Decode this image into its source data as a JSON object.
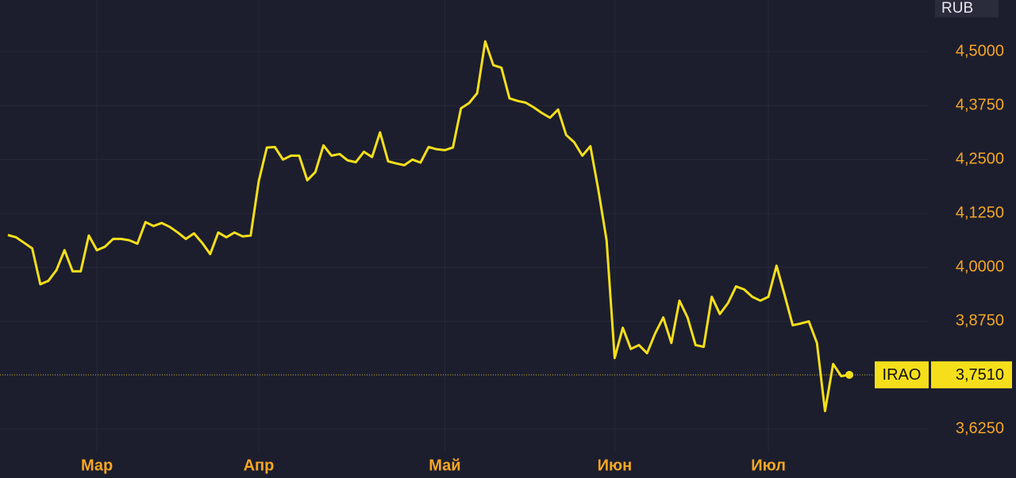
{
  "chart_data": {
    "type": "line",
    "unit": "RUB",
    "categories": [
      null,
      null,
      null,
      null,
      null,
      null,
      null,
      null,
      null,
      null,
      null,
      "Мар",
      null,
      null,
      null,
      null,
      null,
      null,
      null,
      null,
      null,
      null,
      null,
      null,
      null,
      null,
      null,
      null,
      null,
      null,
      null,
      "Апр",
      null,
      null,
      null,
      null,
      null,
      null,
      null,
      null,
      null,
      null,
      null,
      null,
      null,
      null,
      null,
      null,
      null,
      null,
      null,
      null,
      null,
      null,
      "Май",
      null,
      null,
      null,
      null,
      null,
      null,
      null,
      null,
      null,
      null,
      null,
      null,
      null,
      null,
      null,
      null,
      null,
      null,
      null,
      null,
      "Июн",
      null,
      null,
      null,
      null,
      null,
      null,
      null,
      null,
      null,
      null,
      null,
      null,
      null,
      null,
      null,
      null,
      null,
      null,
      "Июл",
      null,
      null,
      null,
      null,
      null,
      null,
      null,
      null,
      null,
      null
    ],
    "series": [
      {
        "name": "IRAO",
        "color": "#f5df1a",
        "values": [
          4.075,
          4.07,
          4.057,
          4.044,
          3.961,
          3.969,
          3.994,
          4.04,
          3.991,
          3.991,
          4.074,
          4.04,
          4.048,
          4.066,
          4.066,
          4.063,
          4.055,
          4.105,
          4.096,
          4.103,
          4.094,
          4.081,
          4.066,
          4.079,
          4.057,
          4.031,
          4.081,
          4.07,
          4.081,
          4.072,
          4.074,
          4.2,
          4.278,
          4.279,
          4.25,
          4.259,
          4.259,
          4.202,
          4.221,
          4.283,
          4.259,
          4.263,
          4.248,
          4.244,
          4.268,
          4.256,
          4.313,
          4.246,
          4.241,
          4.237,
          4.25,
          4.243,
          4.279,
          4.274,
          4.272,
          4.278,
          4.369,
          4.381,
          4.404,
          4.524,
          4.469,
          4.463,
          4.392,
          4.386,
          4.382,
          4.371,
          4.358,
          4.347,
          4.366,
          4.307,
          4.29,
          4.259,
          4.281,
          4.178,
          4.063,
          3.79,
          3.86,
          3.811,
          3.82,
          3.801,
          3.847,
          3.884,
          3.825,
          3.923,
          3.884,
          3.82,
          3.816,
          3.932,
          3.892,
          3.917,
          3.956,
          3.949,
          3.932,
          3.923,
          3.932,
          4.004,
          3.936,
          3.866,
          3.87,
          3.875,
          3.825,
          3.667,
          3.776,
          3.748,
          3.751
        ]
      }
    ],
    "current_price": {
      "value": 3.751,
      "label": "3,7510"
    },
    "ylim": [
      3.6,
      4.62
    ],
    "yticks": [
      {
        "value": 3.625,
        "label": "3,6250"
      },
      {
        "value": 3.75,
        "label": "3,7500"
      },
      {
        "value": 3.875,
        "label": "3,8750"
      },
      {
        "value": 4.0,
        "label": "4,0000"
      },
      {
        "value": 4.125,
        "label": "4,1250"
      },
      {
        "value": 4.25,
        "label": "4,2500"
      },
      {
        "value": 4.375,
        "label": "4,3750"
      },
      {
        "value": 4.5,
        "label": "4,5000"
      }
    ],
    "grid": true
  }
}
